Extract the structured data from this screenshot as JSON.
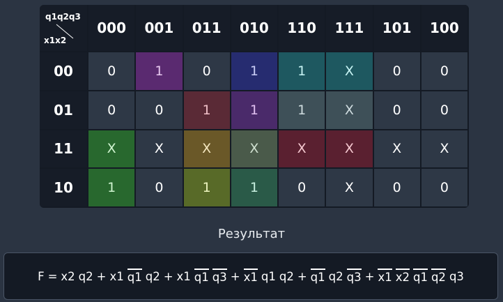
{
  "kmap": {
    "corner": {
      "top": "q1q2q3",
      "bottom": "x1x2"
    },
    "columns": [
      "000",
      "001",
      "011",
      "010",
      "110",
      "111",
      "101",
      "100"
    ],
    "rows": [
      {
        "label": "00",
        "cells": [
          {
            "text": "0"
          },
          {
            "text": "1",
            "bg": "#5a2a70",
            "fg": "#e8c8f0"
          },
          {
            "text": "0"
          },
          {
            "text": "1",
            "bg": "#262c70",
            "fg": "#c8ccf5"
          },
          {
            "text": "1",
            "bg": "#1e5860",
            "fg": "#c8f5f5"
          },
          {
            "text": "X",
            "bg": "#1e5860",
            "fg": "#c8f5f5"
          },
          {
            "text": "0"
          },
          {
            "text": "0"
          }
        ]
      },
      {
        "label": "01",
        "cells": [
          {
            "text": "0"
          },
          {
            "text": "0"
          },
          {
            "text": "1",
            "bg": "#5a2a36",
            "fg": "#f0c0c8"
          },
          {
            "text": "1",
            "bg": "#4a2a6a",
            "fg": "#e0c0f0"
          },
          {
            "text": "1",
            "bg": "#3e5058",
            "fg": "#d0dde0"
          },
          {
            "text": "X",
            "bg": "#3e5058",
            "fg": "#d0dde0"
          },
          {
            "text": "0"
          },
          {
            "text": "0"
          }
        ]
      },
      {
        "label": "11",
        "cells": [
          {
            "text": "X",
            "bg": "#28682e",
            "fg": "#d0f5d0"
          },
          {
            "text": "X"
          },
          {
            "text": "X",
            "bg": "#6a5828",
            "fg": "#f5e8c0"
          },
          {
            "text": "X",
            "bg": "#4a5a4a",
            "fg": "#d0e0d0"
          },
          {
            "text": "X",
            "bg": "#5a2030",
            "fg": "#f5c8d0"
          },
          {
            "text": "X",
            "bg": "#5a2030",
            "fg": "#f5c8d0"
          },
          {
            "text": "X"
          },
          {
            "text": "X"
          }
        ]
      },
      {
        "label": "10",
        "cells": [
          {
            "text": "1",
            "bg": "#28682e",
            "fg": "#d0f5d0"
          },
          {
            "text": "0"
          },
          {
            "text": "1",
            "bg": "#586a28",
            "fg": "#eef5c0"
          },
          {
            "text": "1",
            "bg": "#2a5a48",
            "fg": "#c8f0e0"
          },
          {
            "text": "0"
          },
          {
            "text": "X"
          },
          {
            "text": "0"
          },
          {
            "text": "0"
          }
        ]
      }
    ]
  },
  "result": {
    "title": "Результат",
    "lhs": "F",
    "equals": "=",
    "plus": "+",
    "terms": [
      [
        {
          "var": "x2"
        },
        {
          "var": "q2"
        }
      ],
      [
        {
          "var": "x1"
        },
        {
          "var": "q1",
          "inverted": true
        },
        {
          "var": "q2"
        }
      ],
      [
        {
          "var": "x1"
        },
        {
          "var": "q1",
          "inverted": true
        },
        {
          "var": "q3",
          "inverted": true
        }
      ],
      [
        {
          "var": "x1",
          "inverted": true
        },
        {
          "var": "q1"
        },
        {
          "var": "q2"
        }
      ],
      [
        {
          "var": "q1",
          "inverted": true
        },
        {
          "var": "q2"
        },
        {
          "var": "q3",
          "inverted": true
        }
      ],
      [
        {
          "var": "x1",
          "inverted": true
        },
        {
          "var": "x2",
          "inverted": true
        },
        {
          "var": "q1",
          "inverted": true
        },
        {
          "var": "q2",
          "inverted": true
        },
        {
          "var": "q3"
        }
      ]
    ]
  }
}
